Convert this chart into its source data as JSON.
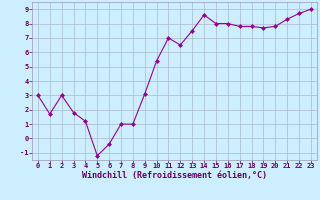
{
  "x": [
    0,
    1,
    2,
    3,
    4,
    5,
    6,
    7,
    8,
    9,
    10,
    11,
    12,
    13,
    14,
    15,
    16,
    17,
    18,
    19,
    20,
    21,
    22,
    23
  ],
  "y": [
    3.0,
    1.7,
    3.0,
    1.8,
    1.2,
    -1.2,
    -0.4,
    1.0,
    1.0,
    3.1,
    5.4,
    7.0,
    6.5,
    7.5,
    8.6,
    8.0,
    8.0,
    7.8,
    7.8,
    7.7,
    7.8,
    8.3,
    8.7,
    9.0
  ],
  "line_color": "#990099",
  "marker": "D",
  "marker_size": 2,
  "bg_color": "#cceeff",
  "grid_color": "#aabbcc",
  "xlabel": "Windchill (Refroidissement éolien,°C)",
  "xlim": [
    -0.5,
    23.5
  ],
  "ylim": [
    -1.5,
    9.5
  ],
  "yticks": [
    -1,
    0,
    1,
    2,
    3,
    4,
    5,
    6,
    7,
    8,
    9
  ],
  "xticks": [
    0,
    1,
    2,
    3,
    4,
    5,
    6,
    7,
    8,
    9,
    10,
    11,
    12,
    13,
    14,
    15,
    16,
    17,
    18,
    19,
    20,
    21,
    22,
    23
  ],
  "tick_fontsize": 5.0,
  "xlabel_fontsize": 6.0,
  "label_color": "#660066",
  "tick_color": "#660066",
  "spine_color": "#9999bb"
}
